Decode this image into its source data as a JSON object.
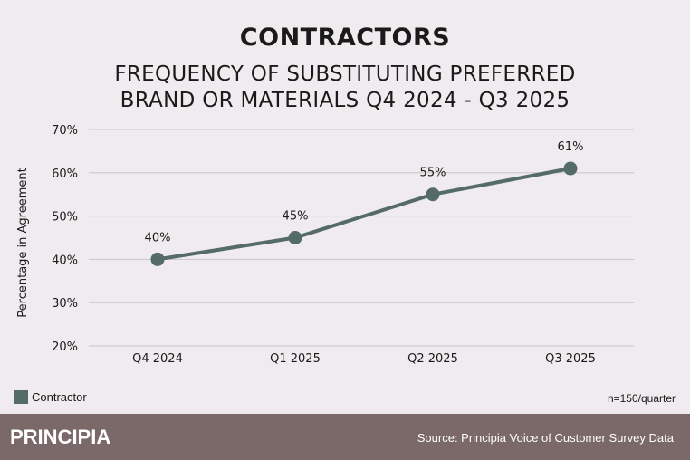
{
  "title": "CONTRACTORS",
  "subtitle_lines": [
    "FREQUENCY OF SUBSTITUTING PREFERRED",
    "BRAND OR MATERIALS Q4 2024 - Q3 2025"
  ],
  "chart_data": {
    "type": "line",
    "categories": [
      "Q4 2024",
      "Q1 2025",
      "Q2 2025",
      "Q3 2025"
    ],
    "series": [
      {
        "name": "Contractor",
        "values": [
          40,
          45,
          55,
          61
        ],
        "color": "#546b68"
      }
    ],
    "data_labels": [
      "40%",
      "45%",
      "55%",
      "61%"
    ],
    "ylabel": "Percentage in Agreement",
    "ylim": [
      20,
      70
    ],
    "yticks": [
      20,
      30,
      40,
      50,
      60,
      70
    ],
    "ytick_labels": [
      "20%",
      "30%",
      "40%",
      "50%",
      "60%",
      "70%"
    ],
    "grid": true,
    "legend_placement": "bottom-left"
  },
  "note": "n=150/quarter",
  "footer": {
    "logo": "PRINCIPIA",
    "source": "Source: Principia Voice of Customer Survey Data",
    "color": "#7b6868"
  }
}
